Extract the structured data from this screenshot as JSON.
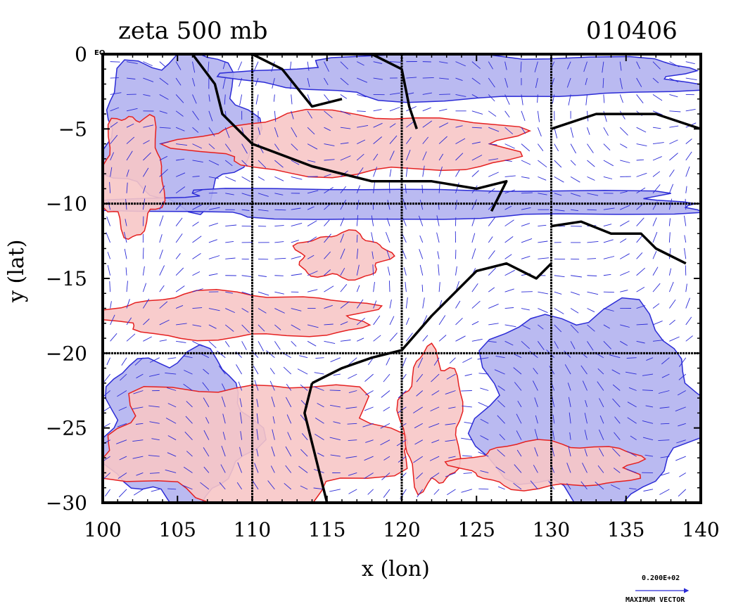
{
  "title_left": "zeta 500 mb",
  "title_right": "010406",
  "corner_label": "EQ",
  "legend": {
    "vector_value": "0.200E+02",
    "vector_label": "MAXIMUM VECTOR",
    "arrow_color": "#2b2bd6"
  },
  "colors": {
    "positive_fill": "#f7c6c6",
    "positive_line": "#e52020",
    "negative_fill": "#b3b3f0",
    "negative_line": "#2b2bd6",
    "coast": "#000000",
    "grid": "#000000"
  },
  "chart_data": {
    "type": "map",
    "title": "zeta 500 mb",
    "subtitle": "010406",
    "xlabel": "x (lon)",
    "ylabel": "y (lat)",
    "xlim": [
      100,
      140
    ],
    "ylim": [
      -30,
      0
    ],
    "x_ticks": [
      100,
      105,
      110,
      115,
      120,
      125,
      130,
      135,
      140
    ],
    "y_ticks": [
      0,
      -5,
      -10,
      -15,
      -20,
      -25,
      -30
    ],
    "x_tick_labels": [
      "100",
      "105",
      "110",
      "115",
      "120",
      "125",
      "130",
      "135",
      "140"
    ],
    "y_tick_labels": [
      "0",
      "−5",
      "−10",
      "−15",
      "−20",
      "−25",
      "−30"
    ],
    "gridlines_x": [
      110,
      120,
      130
    ],
    "gridlines_y": [
      -10,
      -20
    ],
    "field": "relative vorticity at 500 mb with wind vectors",
    "positive_regions": [
      {
        "lon": [
          100,
          104
        ],
        "lat": [
          -4,
          -12
        ]
      },
      {
        "lon": [
          106,
          128
        ],
        "lat": [
          -4,
          -8
        ]
      },
      {
        "lon": [
          113,
          119
        ],
        "lat": [
          -12,
          -15
        ]
      },
      {
        "lon": [
          100,
          118
        ],
        "lat": [
          -16,
          -19
        ]
      },
      {
        "lon": [
          100,
          120
        ],
        "lat": [
          -22,
          -30
        ]
      },
      {
        "lon": [
          120,
          124
        ],
        "lat": [
          -20,
          -29
        ]
      },
      {
        "lon": [
          124,
          136
        ],
        "lat": [
          -26,
          -29
        ]
      }
    ],
    "negative_regions": [
      {
        "lon": [
          100,
          110
        ],
        "lat": [
          0,
          -10
        ]
      },
      {
        "lon": [
          110,
          140
        ],
        "lat": [
          0,
          -3
        ]
      },
      {
        "lon": [
          100,
          140
        ],
        "lat": [
          -9,
          -11
        ]
      },
      {
        "lon": [
          100,
          110
        ],
        "lat": [
          -20,
          -30
        ]
      },
      {
        "lon": [
          125,
          140
        ],
        "lat": [
          -17,
          -30
        ]
      }
    ]
  }
}
